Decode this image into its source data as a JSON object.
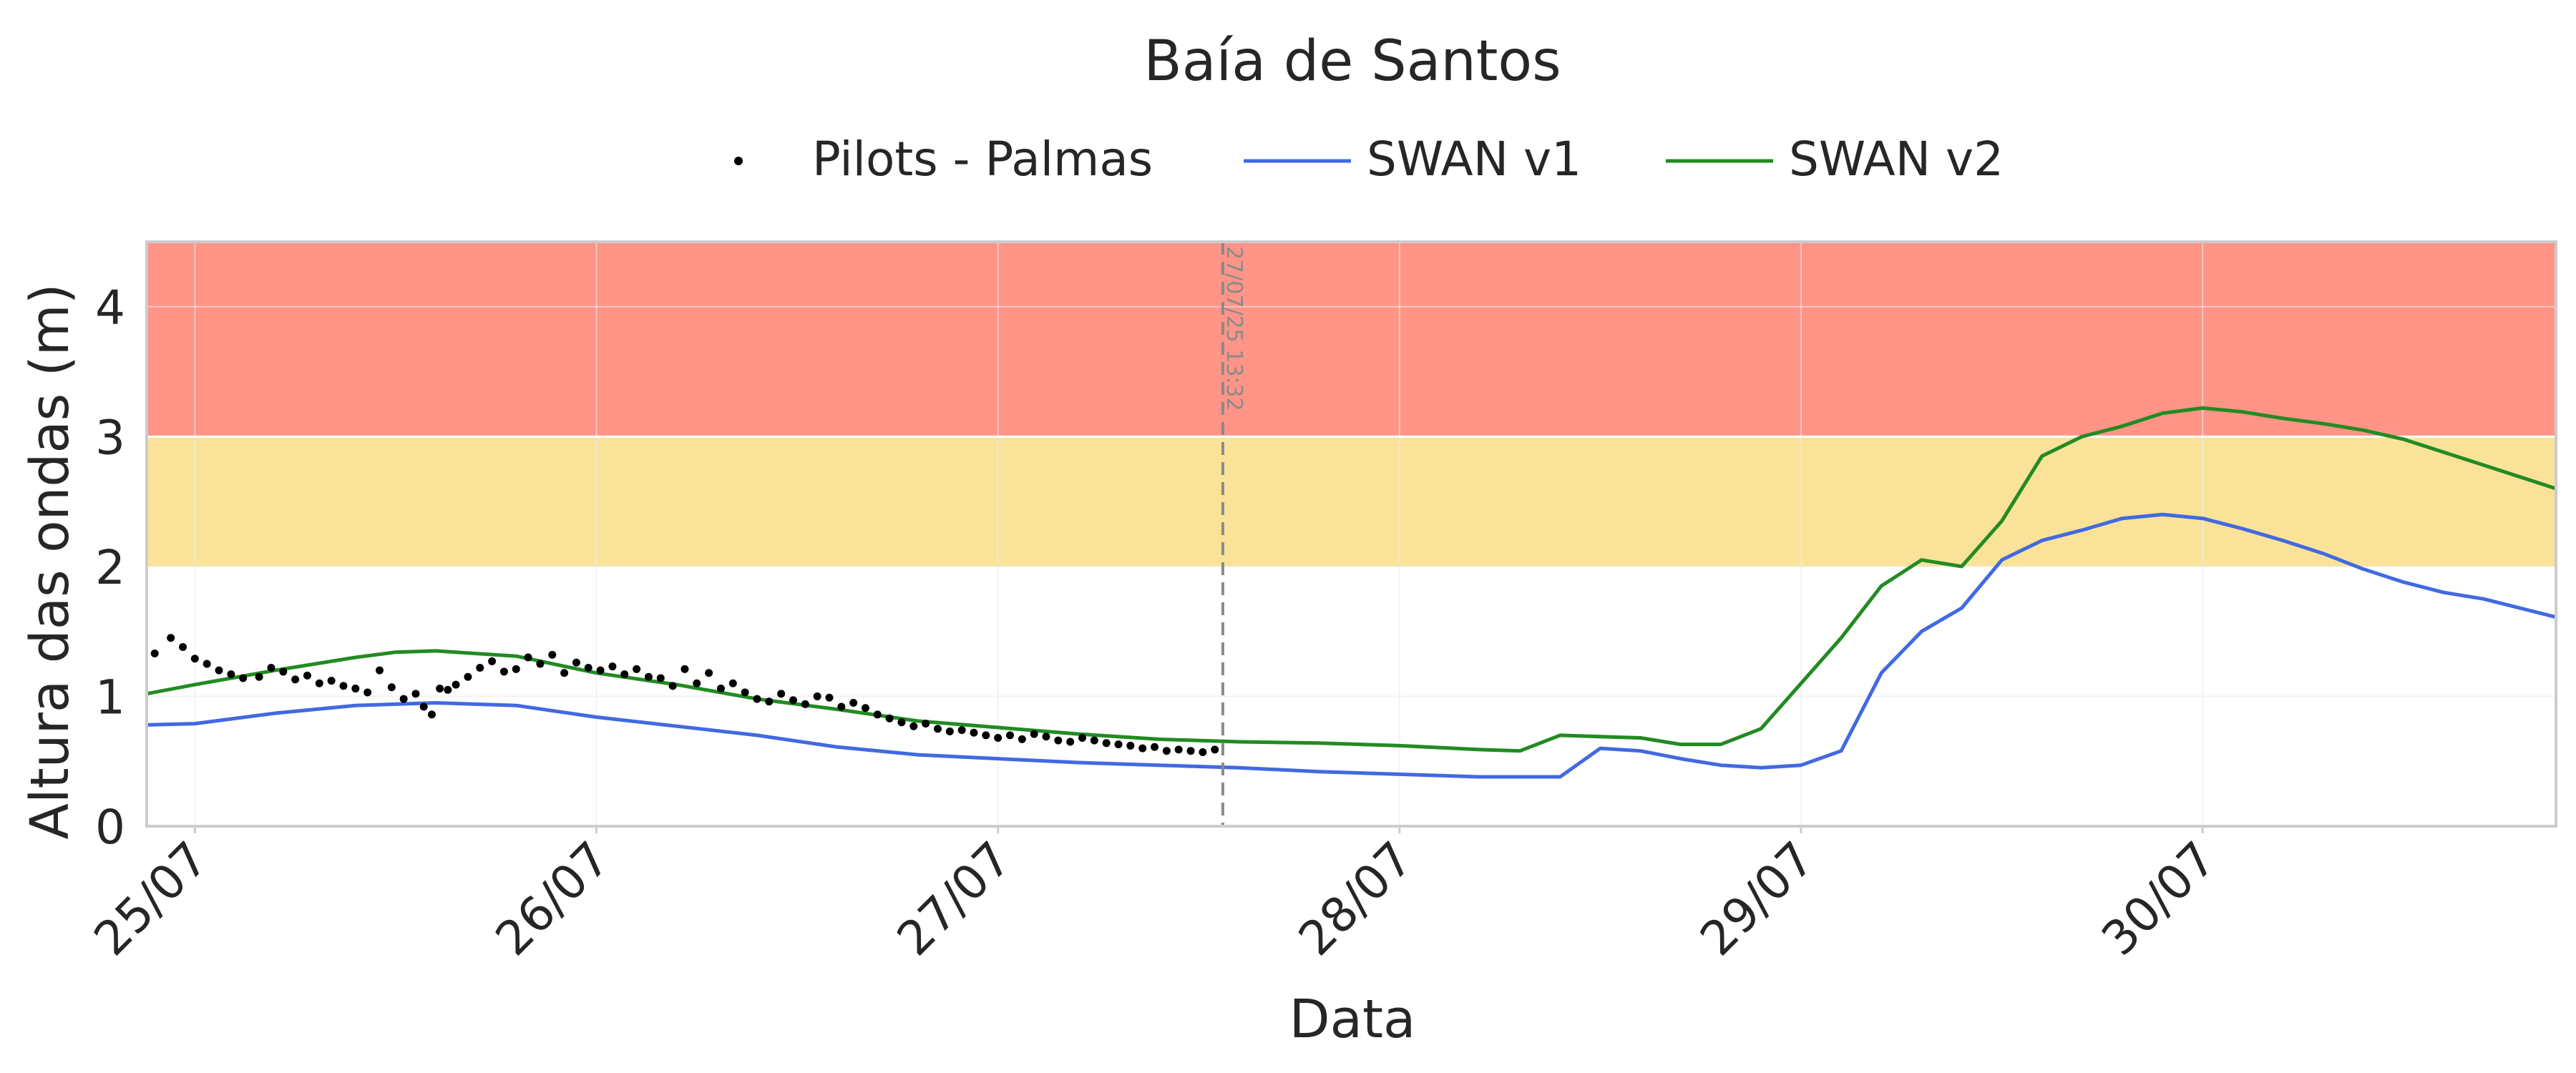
{
  "chart_data": {
    "type": "line",
    "title": "Baía de Santos",
    "xlabel": "Data",
    "ylabel": "Altura das ondas (m)",
    "x_unit": "days since 25/07 00:00",
    "xlim": [
      -0.12,
      5.88
    ],
    "ylim": [
      0,
      4.5
    ],
    "x_ticks": [
      {
        "x": 0,
        "label": "25/07"
      },
      {
        "x": 1,
        "label": "26/07"
      },
      {
        "x": 2,
        "label": "27/07"
      },
      {
        "x": 3,
        "label": "28/07"
      },
      {
        "x": 4,
        "label": "29/07"
      },
      {
        "x": 5,
        "label": "30/07"
      }
    ],
    "y_ticks": [
      0,
      1,
      2,
      3,
      4
    ],
    "grid": true,
    "legend": {
      "position": "top-center",
      "entries": [
        {
          "name": "Pilots - Palmas",
          "kind": "dot",
          "color": "#000000"
        },
        {
          "name": "SWAN v1",
          "kind": "line",
          "color": "#4169e1"
        },
        {
          "name": "SWAN v2",
          "kind": "line",
          "color": "#228b22"
        }
      ]
    },
    "bands": [
      {
        "y0": 3,
        "y1": 4.5,
        "color": "#ff9487"
      },
      {
        "y0": 2,
        "y1": 3,
        "color": "#fae399"
      }
    ],
    "now_line": {
      "x": 2.56,
      "label": "27/07/25 13:32",
      "color": "#8a8a8a"
    },
    "series": [
      {
        "name": "SWAN v1",
        "color": "#4169e1",
        "x": [
          -0.12,
          0,
          0.2,
          0.4,
          0.6,
          0.8,
          1.0,
          1.2,
          1.4,
          1.6,
          1.8,
          2.0,
          2.2,
          2.4,
          2.6,
          2.8,
          3.0,
          3.2,
          3.3,
          3.4,
          3.5,
          3.6,
          3.7,
          3.8,
          3.9,
          4.0,
          4.1,
          4.2,
          4.3,
          4.4,
          4.5,
          4.6,
          4.7,
          4.8,
          4.9,
          5.0,
          5.1,
          5.2,
          5.3,
          5.4,
          5.5,
          5.6,
          5.7,
          5.88
        ],
        "values": [
          0.78,
          0.79,
          0.87,
          0.93,
          0.95,
          0.93,
          0.84,
          0.77,
          0.7,
          0.61,
          0.55,
          0.52,
          0.49,
          0.47,
          0.45,
          0.42,
          0.4,
          0.38,
          0.38,
          0.38,
          0.6,
          0.58,
          0.52,
          0.47,
          0.45,
          0.47,
          0.58,
          1.18,
          1.5,
          1.68,
          2.05,
          2.2,
          2.28,
          2.37,
          2.4,
          2.37,
          2.29,
          2.2,
          2.1,
          1.98,
          1.88,
          1.8,
          1.75,
          1.61
        ]
      },
      {
        "name": "SWAN v2",
        "color": "#228b22",
        "x": [
          -0.12,
          0,
          0.2,
          0.4,
          0.5,
          0.6,
          0.8,
          1.0,
          1.2,
          1.4,
          1.6,
          1.8,
          2.0,
          2.2,
          2.4,
          2.6,
          2.8,
          3.0,
          3.2,
          3.3,
          3.4,
          3.5,
          3.6,
          3.7,
          3.8,
          3.9,
          4.0,
          4.1,
          4.2,
          4.3,
          4.4,
          4.5,
          4.6,
          4.7,
          4.8,
          4.9,
          5.0,
          5.1,
          5.2,
          5.3,
          5.4,
          5.5,
          5.6,
          5.7,
          5.88
        ],
        "values": [
          1.02,
          1.09,
          1.2,
          1.3,
          1.34,
          1.35,
          1.31,
          1.18,
          1.09,
          0.98,
          0.9,
          0.81,
          0.76,
          0.71,
          0.67,
          0.65,
          0.64,
          0.62,
          0.59,
          0.58,
          0.7,
          0.69,
          0.68,
          0.63,
          0.63,
          0.75,
          1.1,
          1.45,
          1.85,
          2.05,
          2.0,
          2.35,
          2.85,
          3.0,
          3.08,
          3.18,
          3.22,
          3.19,
          3.14,
          3.1,
          3.05,
          2.98,
          2.88,
          2.78,
          2.6
        ]
      },
      {
        "name": "Pilots - Palmas",
        "color": "#000000",
        "kind": "scatter",
        "x": [
          -0.1,
          -0.06,
          -0.03,
          0.0,
          0.03,
          0.06,
          0.09,
          0.12,
          0.16,
          0.19,
          0.22,
          0.25,
          0.28,
          0.31,
          0.34,
          0.37,
          0.4,
          0.43,
          0.46,
          0.49,
          0.52,
          0.55,
          0.57,
          0.59,
          0.61,
          0.63,
          0.65,
          0.68,
          0.71,
          0.74,
          0.77,
          0.8,
          0.83,
          0.86,
          0.89,
          0.92,
          0.95,
          0.98,
          1.01,
          1.04,
          1.07,
          1.1,
          1.13,
          1.16,
          1.19,
          1.22,
          1.25,
          1.28,
          1.31,
          1.34,
          1.37,
          1.4,
          1.43,
          1.46,
          1.49,
          1.52,
          1.55,
          1.58,
          1.61,
          1.64,
          1.67,
          1.7,
          1.73,
          1.76,
          1.79,
          1.82,
          1.85,
          1.88,
          1.91,
          1.94,
          1.97,
          2.0,
          2.03,
          2.06,
          2.09,
          2.12,
          2.15,
          2.18,
          2.21,
          2.24,
          2.27,
          2.3,
          2.33,
          2.36,
          2.39,
          2.42,
          2.45,
          2.48,
          2.51,
          2.54
        ],
        "values": [
          1.33,
          1.45,
          1.38,
          1.29,
          1.25,
          1.2,
          1.17,
          1.14,
          1.15,
          1.22,
          1.19,
          1.13,
          1.16,
          1.1,
          1.12,
          1.08,
          1.06,
          1.03,
          1.2,
          1.07,
          0.98,
          1.02,
          0.92,
          0.86,
          1.06,
          1.05,
          1.09,
          1.15,
          1.22,
          1.27,
          1.19,
          1.21,
          1.3,
          1.25,
          1.32,
          1.18,
          1.26,
          1.22,
          1.2,
          1.23,
          1.17,
          1.21,
          1.15,
          1.14,
          1.08,
          1.21,
          1.1,
          1.18,
          1.06,
          1.1,
          1.03,
          0.98,
          0.96,
          1.02,
          0.97,
          0.94,
          1.0,
          0.99,
          0.92,
          0.95,
          0.91,
          0.86,
          0.83,
          0.8,
          0.77,
          0.79,
          0.75,
          0.73,
          0.74,
          0.72,
          0.7,
          0.68,
          0.7,
          0.67,
          0.71,
          0.69,
          0.66,
          0.65,
          0.68,
          0.66,
          0.64,
          0.63,
          0.62,
          0.6,
          0.61,
          0.58,
          0.59,
          0.58,
          0.57,
          0.59
        ]
      }
    ]
  }
}
